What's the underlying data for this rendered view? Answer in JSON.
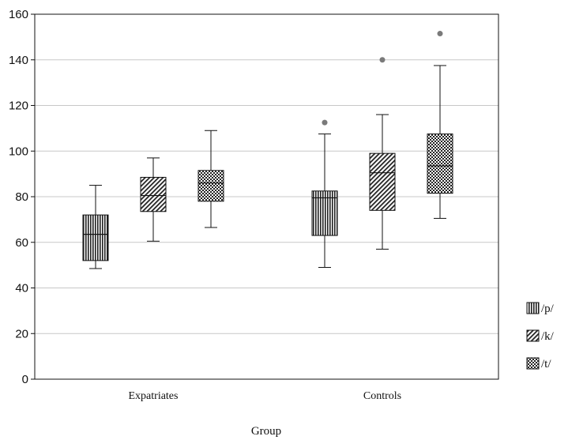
{
  "chart_data": {
    "type": "box",
    "xlabel": "Group",
    "ylabel": "",
    "ylim": [
      0,
      160
    ],
    "yticks": [
      0,
      20,
      40,
      60,
      80,
      100,
      120,
      140,
      160
    ],
    "grid": "horizontal",
    "legend_position": "right",
    "categories": [
      "Expatriates",
      "Controls"
    ],
    "series": [
      {
        "name": "/p/",
        "pattern": "vertical-lines",
        "boxes": [
          {
            "category": "Expatriates",
            "min": 48.5,
            "q1": 52,
            "median": 63.5,
            "q3": 72,
            "max": 85,
            "outliers": []
          },
          {
            "category": "Controls",
            "min": 49,
            "q1": 63,
            "median": 79.5,
            "q3": 82.5,
            "max": 107.5,
            "outliers": [
              112.5
            ]
          }
        ]
      },
      {
        "name": "/k/",
        "pattern": "diagonal-lines",
        "boxes": [
          {
            "category": "Expatriates",
            "min": 60.5,
            "q1": 73.5,
            "median": 80.5,
            "q3": 88.5,
            "max": 97,
            "outliers": []
          },
          {
            "category": "Controls",
            "min": 57,
            "q1": 74,
            "median": 90.5,
            "q3": 99,
            "max": 116,
            "outliers": [
              140
            ]
          }
        ]
      },
      {
        "name": "/t/",
        "pattern": "checker",
        "boxes": [
          {
            "category": "Expatriates",
            "min": 66.5,
            "q1": 78,
            "median": 86,
            "q3": 91.5,
            "max": 109,
            "outliers": []
          },
          {
            "category": "Controls",
            "min": 70.5,
            "q1": 81.5,
            "median": 93.5,
            "q3": 107.5,
            "max": 137.5,
            "outliers": [
              151.5
            ]
          }
        ]
      }
    ]
  }
}
